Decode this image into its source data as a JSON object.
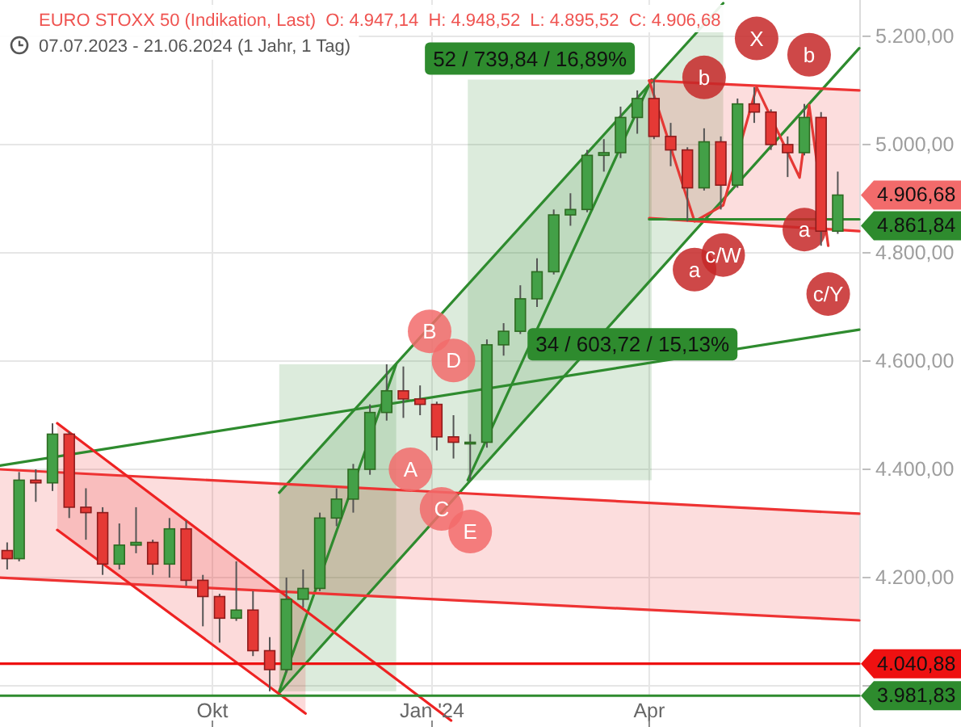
{
  "chart_data": {
    "type": "candlestick",
    "title": "EURO STOXX 50 (Indikation, Last)",
    "subtitle": "07.07.2023 - 21.06.2024 (1 Jahr, 1 Tag)",
    "x": [
      "2023-07-07",
      "2023-07-12",
      "2023-07-19",
      "2023-07-26",
      "2023-08-02",
      "2023-08-09",
      "2023-08-16",
      "2023-08-23",
      "2023-08-30",
      "2023-09-06",
      "2023-09-13",
      "2023-09-20",
      "2023-09-27",
      "2023-10-04",
      "2023-10-11",
      "2023-10-18",
      "2023-10-25",
      "2023-11-01",
      "2023-11-08",
      "2023-11-15",
      "2023-11-22",
      "2023-11-29",
      "2023-12-06",
      "2023-12-13",
      "2023-12-20",
      "2023-12-27",
      "2024-01-03",
      "2024-01-10",
      "2024-01-17",
      "2024-01-24",
      "2024-01-31",
      "2024-02-07",
      "2024-02-14",
      "2024-02-21",
      "2024-02-28",
      "2024-03-06",
      "2024-03-13",
      "2024-03-20",
      "2024-03-27",
      "2024-04-03",
      "2024-04-10",
      "2024-04-17",
      "2024-04-24",
      "2024-05-01",
      "2024-05-08",
      "2024-05-15",
      "2024-05-22",
      "2024-05-29",
      "2024-06-05",
      "2024-06-12",
      "2024-06-19"
    ],
    "ohlc": [
      [
        4250,
        4265,
        4215,
        4235
      ],
      [
        4235,
        4395,
        4230,
        4380
      ],
      [
        4380,
        4400,
        4340,
        4375
      ],
      [
        4375,
        4485,
        4360,
        4465
      ],
      [
        4465,
        4470,
        4310,
        4330
      ],
      [
        4330,
        4365,
        4270,
        4320
      ],
      [
        4320,
        4330,
        4205,
        4225
      ],
      [
        4225,
        4300,
        4215,
        4260
      ],
      [
        4260,
        4330,
        4245,
        4265
      ],
      [
        4265,
        4270,
        4205,
        4225
      ],
      [
        4225,
        4310,
        4200,
        4290
      ],
      [
        4290,
        4305,
        4185,
        4195
      ],
      [
        4195,
        4205,
        4110,
        4165
      ],
      [
        4165,
        4170,
        4080,
        4125
      ],
      [
        4125,
        4230,
        4120,
        4140
      ],
      [
        4140,
        4175,
        4055,
        4065
      ],
      [
        4065,
        4090,
        3990,
        4030
      ],
      [
        4030,
        4200,
        4025,
        4160
      ],
      [
        4160,
        4215,
        4145,
        4180
      ],
      [
        4180,
        4320,
        4175,
        4310
      ],
      [
        4310,
        4365,
        4295,
        4345
      ],
      [
        4345,
        4410,
        4320,
        4400
      ],
      [
        4400,
        4520,
        4390,
        4505
      ],
      [
        4505,
        4594,
        4490,
        4545
      ],
      [
        4545,
        4590,
        4495,
        4530
      ],
      [
        4530,
        4555,
        4500,
        4520
      ],
      [
        4520,
        4525,
        4435,
        4460
      ],
      [
        4460,
        4500,
        4420,
        4450
      ],
      [
        4450,
        4465,
        4380,
        4450
      ],
      [
        4450,
        4640,
        4440,
        4630
      ],
      [
        4630,
        4670,
        4610,
        4655
      ],
      [
        4655,
        4740,
        4650,
        4715
      ],
      [
        4715,
        4790,
        4700,
        4765
      ],
      [
        4765,
        4880,
        4760,
        4870
      ],
      [
        4870,
        4910,
        4850,
        4880
      ],
      [
        4880,
        4990,
        4875,
        4980
      ],
      [
        4980,
        5010,
        4950,
        4985
      ],
      [
        4985,
        5070,
        4975,
        5050
      ],
      [
        5050,
        5100,
        5020,
        5085
      ],
      [
        5085,
        5120,
        5010,
        5015
      ],
      [
        5015,
        5040,
        4960,
        4990
      ],
      [
        4990,
        4995,
        4858,
        4920
      ],
      [
        4920,
        5030,
        4915,
        5005
      ],
      [
        5005,
        5015,
        4880,
        4925
      ],
      [
        4925,
        5085,
        4920,
        5075
      ],
      [
        5075,
        5106,
        5040,
        5060
      ],
      [
        5060,
        5065,
        4990,
        5000
      ],
      [
        5000,
        5015,
        4940,
        4985
      ],
      [
        4985,
        5075,
        4980,
        5050
      ],
      [
        5050,
        5060,
        4813,
        4840
      ],
      [
        4840,
        4950,
        4835,
        4906.68
      ]
    ],
    "value_labels": [
      null,
      null,
      null,
      null,
      null,
      null,
      null,
      null,
      null,
      null,
      null,
      null,
      null,
      null,
      null,
      null,
      null,
      null,
      null,
      null,
      null,
      null,
      null,
      null,
      null,
      null,
      null,
      null,
      null,
      null,
      null,
      null,
      null,
      null,
      null,
      null,
      null,
      null,
      null,
      null,
      null,
      null,
      null,
      null,
      null,
      null,
      null,
      null,
      null,
      null,
      "4.906,68"
    ],
    "series": [
      {
        "type": "line",
        "x": [
          "2023-10-29",
          "2023-12-17"
        ],
        "values": [
          3990,
          4594
        ],
        "lower": [
          3990,
          3990
        ],
        "upper": [
          4594,
          4594
        ],
        "color": "#2e8b2e"
      },
      {
        "type": "line",
        "x": [
          "2024-01-16",
          "2024-04-02"
        ],
        "values": [
          4380,
          5120
        ],
        "lower": [
          4380,
          4380
        ],
        "upper": [
          5120,
          5120
        ],
        "color": "#2e8b2e"
      },
      {
        "type": "line",
        "x": [
          "2023-10-29",
          "2024-05-02"
        ],
        "values": [
          4357,
          5261
        ],
        "lower": [
          3987,
          4898
        ],
        "upper": [
          4357,
          5261
        ],
        "color": "#2e8b2e"
      },
      {
        "type": "line",
        "x": [
          "2023-10-29",
          "2024-06-28"
        ],
        "values": [
          3987,
          5178
        ],
        "color": "#2e8b2e"
      },
      {
        "type": "line",
        "x": [
          "2023-07-04",
          "2024-06-28"
        ],
        "values": [
          4407,
          4658
        ],
        "color": "#2e8b2e"
      },
      {
        "type": "line",
        "x": [
          "2023-07-04",
          "2024-06-28"
        ],
        "values": [
          4200,
          4121
        ],
        "lower": [
          4200,
          4121
        ],
        "upper": [
          4400,
          4318
        ],
        "color": "#ee3333"
      },
      {
        "type": "line",
        "x": [
          "2023-07-04",
          "2024-06-28"
        ],
        "values": [
          4400,
          4318
        ],
        "color": "#ee3333"
      },
      {
        "type": "line",
        "x": [
          "2023-07-28",
          "2023-11-09"
        ],
        "values": [
          4288,
          3949
        ],
        "lower": [
          4288,
          3949
        ],
        "upper": [
          4485,
          4139
        ],
        "color": "#ee2222"
      },
      {
        "type": "line",
        "x": [
          "2023-07-28",
          "2024-01-09"
        ],
        "values": [
          4485,
          3936
        ],
        "color": "#ee2222"
      },
      {
        "type": "line",
        "x": [
          "2024-04-01",
          "2024-06-28"
        ],
        "values": [
          4864,
          4840
        ],
        "lower": [
          4864,
          4840
        ],
        "upper": [
          5118,
          5100
        ],
        "color": "#ee3333"
      },
      {
        "type": "line",
        "x": [
          "2024-04-01",
          "2024-06-28"
        ],
        "values": [
          5118,
          5100
        ],
        "color": "#ee3333"
      },
      {
        "type": "line",
        "x": [
          "2024-04-01",
          "2024-04-20",
          "2024-05-02",
          "2024-05-16",
          "2024-06-03",
          "2024-06-07",
          "2024-06-15"
        ],
        "values": [
          5118,
          4858,
          4888,
          5106,
          4939,
          5073,
          4813
        ],
        "color": "#e53935"
      },
      {
        "type": "line",
        "x": [
          "2024-04-01",
          "2024-06-28"
        ],
        "values": [
          4861.84,
          4861.84
        ],
        "value_labels": [
          null,
          "4.861,84"
        ],
        "color": "#2e8b2e"
      },
      {
        "type": "line",
        "x": [
          "2023-07-04",
          "2024-06-28"
        ],
        "values": [
          4040.88,
          4040.88
        ],
        "value_labels": [
          null,
          "4.040,88"
        ],
        "color": "#ee1111"
      },
      {
        "type": "line",
        "x": [
          "2023-07-04",
          "2024-06-28"
        ],
        "values": [
          3981.83,
          3981.83
        ],
        "value_labels": [
          null,
          "3.981,83"
        ],
        "color": "#2e8b2e"
      },
      {
        "type": "scatter",
        "marker": "circle",
        "x": [
          "2023-12-31",
          "2023-12-23",
          "2024-01-05",
          "2024-01-10",
          "2024-01-17"
        ],
        "values": [
          4655,
          4400,
          4327,
          4601,
          4285
        ],
        "value_labels": [
          "B",
          "A",
          "C",
          "D",
          "E"
        ],
        "color": "#f26b6b"
      },
      {
        "type": "scatter",
        "marker": "circle",
        "x": [
          "2024-04-24",
          "2024-05-16",
          "2024-06-07",
          "2024-04-20",
          "2024-05-02",
          "2024-06-05",
          "2024-06-15"
        ],
        "values": [
          5124,
          5196,
          5166,
          4769,
          4796,
          4843,
          4724
        ],
        "value_labels": [
          "b",
          "X",
          "b",
          "a",
          "c/W",
          "a",
          "c/Y"
        ],
        "color": "#c62828"
      }
    ],
    "xlim": [
      "2023-07-04",
      "2024-06-28"
    ],
    "xticks": [
      {
        "value": "2023-10-01",
        "label": "Okt"
      },
      {
        "value": "2024-01-01",
        "label": "Jan '24"
      },
      {
        "value": "2024-04-01",
        "label": "Apr"
      }
    ],
    "ylim": [
      3924,
      5267
    ],
    "yticks": [
      {
        "value": 4000,
        "label": null
      },
      {
        "value": 4200,
        "label": "4.200,00"
      },
      {
        "value": 4400,
        "label": "4.400,00"
      },
      {
        "value": 4600,
        "label": "4.600,00"
      },
      {
        "value": 4800,
        "label": "4.800,00"
      },
      {
        "value": 5000,
        "label": "5.000,00"
      },
      {
        "value": 5200,
        "label": "5.200,00"
      }
    ],
    "grid": true,
    "annotations": [
      "O: 4.947,14  H: 4.948,52  L: 4.895,52  C: 4.906,68",
      {
        "text": "52 / 739,84 / 16,89%",
        "x": "2024-02-11",
        "y": 5120
      },
      {
        "text": "34 / 603,72 / 15,13%",
        "x": "2024-03-25",
        "y": 4592
      }
    ]
  }
}
